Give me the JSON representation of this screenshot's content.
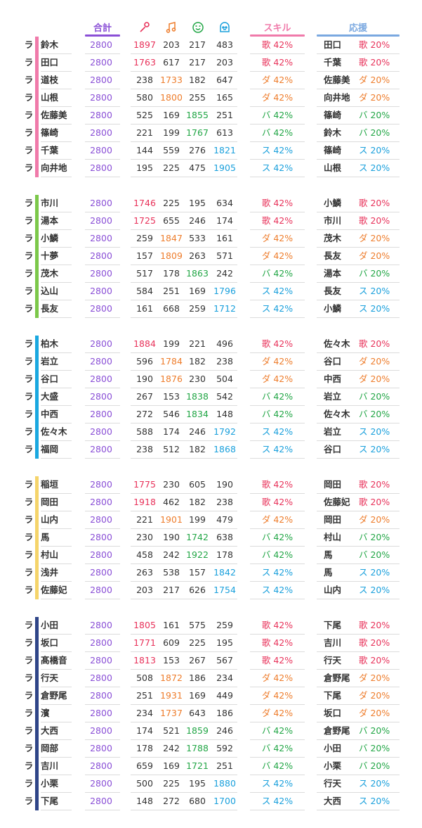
{
  "header": {
    "total_label": "合計",
    "skill_label": "スキル",
    "support_label": "応援"
  },
  "icons": {
    "col0": "microphone-icon",
    "col1": "music-note-icon",
    "col2": "smiley-face-icon",
    "col3": "character-face-icon"
  },
  "colors": {
    "purple": "#8a4fd6",
    "red": "#e8325a",
    "orange": "#ee7d2c",
    "green": "#22a646",
    "blue": "#1aa0dc",
    "pink": "#f07aaa",
    "lightblue": "#7aa8e0"
  },
  "skill_kana": {
    "r": "歌",
    "o": "ダ",
    "g": "バ",
    "b": "ス"
  },
  "groups": [
    {
      "color": "#f07aaa",
      "rows": [
        {
          "ra": "ラ",
          "name": "鈴木",
          "total": "2800",
          "stats": [
            "1897",
            "203",
            "217",
            "483"
          ],
          "hl": 0,
          "skill": "歌 42%",
          "support_name": "田口",
          "support": "歌 20%"
        },
        {
          "ra": "ラ",
          "name": "田口",
          "total": "2800",
          "stats": [
            "1763",
            "617",
            "217",
            "203"
          ],
          "hl": 0,
          "skill": "歌 42%",
          "support_name": "千葉",
          "support": "歌 20%"
        },
        {
          "ra": "ラ",
          "name": "道枝",
          "total": "2800",
          "stats": [
            "238",
            "1733",
            "182",
            "647"
          ],
          "hl": 1,
          "skill": "ダ 42%",
          "support_name": "佐藤美",
          "support": "ダ 20%"
        },
        {
          "ra": "ラ",
          "name": "山根",
          "total": "2800",
          "stats": [
            "580",
            "1800",
            "255",
            "165"
          ],
          "hl": 1,
          "skill": "ダ 42%",
          "support_name": "向井地",
          "support": "ダ 20%"
        },
        {
          "ra": "ラ",
          "name": "佐藤美",
          "total": "2800",
          "stats": [
            "525",
            "169",
            "1855",
            "251"
          ],
          "hl": 2,
          "skill": "バ 42%",
          "support_name": "篠崎",
          "support": "バ 20%"
        },
        {
          "ra": "ラ",
          "name": "篠崎",
          "total": "2800",
          "stats": [
            "221",
            "199",
            "1767",
            "613"
          ],
          "hl": 2,
          "skill": "バ 42%",
          "support_name": "鈴木",
          "support": "バ 20%"
        },
        {
          "ra": "ラ",
          "name": "千葉",
          "total": "2800",
          "stats": [
            "144",
            "559",
            "276",
            "1821"
          ],
          "hl": 3,
          "skill": "ス 42%",
          "support_name": "篠崎",
          "support": "ス 20%"
        },
        {
          "ra": "ラ",
          "name": "向井地",
          "total": "2800",
          "stats": [
            "195",
            "225",
            "475",
            "1905"
          ],
          "hl": 3,
          "skill": "ス 42%",
          "support_name": "山根",
          "support": "ス 20%"
        }
      ]
    },
    {
      "color": "#7cc84a",
      "rows": [
        {
          "ra": "ラ",
          "name": "市川",
          "total": "2800",
          "stats": [
            "1746",
            "225",
            "195",
            "634"
          ],
          "hl": 0,
          "skill": "歌 42%",
          "support_name": "小鱗",
          "support": "歌 20%"
        },
        {
          "ra": "ラ",
          "name": "湯本",
          "total": "2800",
          "stats": [
            "1725",
            "655",
            "246",
            "174"
          ],
          "hl": 0,
          "skill": "歌 42%",
          "support_name": "市川",
          "support": "歌 20%"
        },
        {
          "ra": "ラ",
          "name": "小鱗",
          "total": "2800",
          "stats": [
            "259",
            "1847",
            "533",
            "161"
          ],
          "hl": 1,
          "skill": "ダ 42%",
          "support_name": "茂木",
          "support": "ダ 20%"
        },
        {
          "ra": "ラ",
          "name": "十夢",
          "total": "2800",
          "stats": [
            "157",
            "1809",
            "263",
            "571"
          ],
          "hl": 1,
          "skill": "ダ 42%",
          "support_name": "長友",
          "support": "ダ 20%"
        },
        {
          "ra": "ラ",
          "name": "茂木",
          "total": "2800",
          "stats": [
            "517",
            "178",
            "1863",
            "242"
          ],
          "hl": 2,
          "skill": "バ 42%",
          "support_name": "湯本",
          "support": "バ 20%"
        },
        {
          "ra": "ラ",
          "name": "込山",
          "total": "2800",
          "stats": [
            "584",
            "251",
            "169",
            "1796"
          ],
          "hl": 3,
          "skill": "ス 42%",
          "support_name": "長友",
          "support": "ス 20%"
        },
        {
          "ra": "ラ",
          "name": "長友",
          "total": "2800",
          "stats": [
            "161",
            "668",
            "259",
            "1712"
          ],
          "hl": 3,
          "skill": "ス 42%",
          "support_name": "小鱗",
          "support": "ス 20%"
        }
      ]
    },
    {
      "color": "#1aa8e0",
      "rows": [
        {
          "ra": "ラ",
          "name": "柏木",
          "total": "2800",
          "stats": [
            "1884",
            "199",
            "221",
            "496"
          ],
          "hl": 0,
          "skill": "歌 42%",
          "support_name": "佐々木",
          "support": "歌 20%"
        },
        {
          "ra": "ラ",
          "name": "岩立",
          "total": "2800",
          "stats": [
            "596",
            "1784",
            "182",
            "238"
          ],
          "hl": 1,
          "skill": "ダ 42%",
          "support_name": "谷口",
          "support": "ダ 20%"
        },
        {
          "ra": "ラ",
          "name": "谷口",
          "total": "2800",
          "stats": [
            "190",
            "1876",
            "230",
            "504"
          ],
          "hl": 1,
          "skill": "ダ 42%",
          "support_name": "中西",
          "support": "ダ 20%"
        },
        {
          "ra": "ラ",
          "name": "大盛",
          "total": "2800",
          "stats": [
            "267",
            "153",
            "1838",
            "542"
          ],
          "hl": 2,
          "skill": "バ 42%",
          "support_name": "岩立",
          "support": "バ 20%"
        },
        {
          "ra": "ラ",
          "name": "中西",
          "total": "2800",
          "stats": [
            "272",
            "546",
            "1834",
            "148"
          ],
          "hl": 2,
          "skill": "バ 42%",
          "support_name": "佐々木",
          "support": "バ 20%"
        },
        {
          "ra": "ラ",
          "name": "佐々木",
          "total": "2800",
          "stats": [
            "588",
            "174",
            "246",
            "1792"
          ],
          "hl": 3,
          "skill": "ス 42%",
          "support_name": "岩立",
          "support": "ス 20%"
        },
        {
          "ra": "ラ",
          "name": "福岡",
          "total": "2800",
          "stats": [
            "238",
            "512",
            "182",
            "1868"
          ],
          "hl": 3,
          "skill": "ス 42%",
          "support_name": "谷口",
          "support": "ス 20%"
        }
      ]
    },
    {
      "color": "#f5d46a",
      "rows": [
        {
          "ra": "ラ",
          "name": "稲垣",
          "total": "2800",
          "stats": [
            "1775",
            "230",
            "605",
            "190"
          ],
          "hl": 0,
          "skill": "歌 42%",
          "support_name": "岡田",
          "support": "歌 20%"
        },
        {
          "ra": "ラ",
          "name": "岡田",
          "total": "2800",
          "stats": [
            "1918",
            "462",
            "182",
            "238"
          ],
          "hl": 0,
          "skill": "歌 42%",
          "support_name": "佐藤妃",
          "support": "歌 20%"
        },
        {
          "ra": "ラ",
          "name": "山内",
          "total": "2800",
          "stats": [
            "221",
            "1901",
            "199",
            "479"
          ],
          "hl": 1,
          "skill": "ダ 42%",
          "support_name": "岡田",
          "support": "ダ 20%"
        },
        {
          "ra": "ラ",
          "name": "馬",
          "total": "2800",
          "stats": [
            "230",
            "190",
            "1742",
            "638"
          ],
          "hl": 2,
          "skill": "バ 42%",
          "support_name": "村山",
          "support": "バ 20%"
        },
        {
          "ra": "ラ",
          "name": "村山",
          "total": "2800",
          "stats": [
            "458",
            "242",
            "1922",
            "178"
          ],
          "hl": 2,
          "skill": "バ 42%",
          "support_name": "馬",
          "support": "バ 20%"
        },
        {
          "ra": "ラ",
          "name": "浅井",
          "total": "2800",
          "stats": [
            "263",
            "538",
            "157",
            "1842"
          ],
          "hl": 3,
          "skill": "ス 42%",
          "support_name": "馬",
          "support": "ス 20%"
        },
        {
          "ra": "ラ",
          "name": "佐藤妃",
          "total": "2800",
          "stats": [
            "203",
            "217",
            "626",
            "1754"
          ],
          "hl": 3,
          "skill": "ス 42%",
          "support_name": "山内",
          "support": "ス 20%"
        }
      ]
    },
    {
      "color": "#2f4588",
      "rows": [
        {
          "ra": "ラ",
          "name": "小田",
          "total": "2800",
          "stats": [
            "1805",
            "161",
            "575",
            "259"
          ],
          "hl": 0,
          "skill": "歌 42%",
          "support_name": "下尾",
          "support": "歌 20%"
        },
        {
          "ra": "ラ",
          "name": "坂口",
          "total": "2800",
          "stats": [
            "1771",
            "609",
            "225",
            "195"
          ],
          "hl": 0,
          "skill": "歌 42%",
          "support_name": "吉川",
          "support": "歌 20%"
        },
        {
          "ra": "ラ",
          "name": "髙橋音",
          "total": "2800",
          "stats": [
            "1813",
            "153",
            "267",
            "567"
          ],
          "hl": 0,
          "skill": "歌 42%",
          "support_name": "行天",
          "support": "歌 20%"
        },
        {
          "ra": "ラ",
          "name": "行天",
          "total": "2800",
          "stats": [
            "508",
            "1872",
            "186",
            "234"
          ],
          "hl": 1,
          "skill": "ダ 42%",
          "support_name": "倉野尾",
          "support": "ダ 20%"
        },
        {
          "ra": "ラ",
          "name": "倉野尾",
          "total": "2800",
          "stats": [
            "251",
            "1931",
            "169",
            "449"
          ],
          "hl": 1,
          "skill": "ダ 42%",
          "support_name": "下尾",
          "support": "ダ 20%"
        },
        {
          "ra": "ラ",
          "name": "濱",
          "total": "2800",
          "stats": [
            "234",
            "1737",
            "643",
            "186"
          ],
          "hl": 1,
          "skill": "ダ 42%",
          "support_name": "坂口",
          "support": "ダ 20%"
        },
        {
          "ra": "ラ",
          "name": "大西",
          "total": "2800",
          "stats": [
            "174",
            "521",
            "1859",
            "246"
          ],
          "hl": 2,
          "skill": "バ 42%",
          "support_name": "倉野尾",
          "support": "バ 20%"
        },
        {
          "ra": "ラ",
          "name": "岡部",
          "total": "2800",
          "stats": [
            "178",
            "242",
            "1788",
            "592"
          ],
          "hl": 2,
          "skill": "バ 42%",
          "support_name": "小田",
          "support": "バ 20%"
        },
        {
          "ra": "ラ",
          "name": "吉川",
          "total": "2800",
          "stats": [
            "659",
            "169",
            "1721",
            "251"
          ],
          "hl": 2,
          "skill": "バ 42%",
          "support_name": "小栗",
          "support": "バ 20%"
        },
        {
          "ra": "ラ",
          "name": "小栗",
          "total": "2800",
          "stats": [
            "500",
            "225",
            "195",
            "1880"
          ],
          "hl": 3,
          "skill": "ス 42%",
          "support_name": "行天",
          "support": "ス 20%"
        },
        {
          "ra": "ラ",
          "name": "下尾",
          "total": "2800",
          "stats": [
            "148",
            "272",
            "680",
            "1700"
          ],
          "hl": 3,
          "skill": "ス 42%",
          "support_name": "大西",
          "support": "ス 20%"
        }
      ]
    }
  ]
}
